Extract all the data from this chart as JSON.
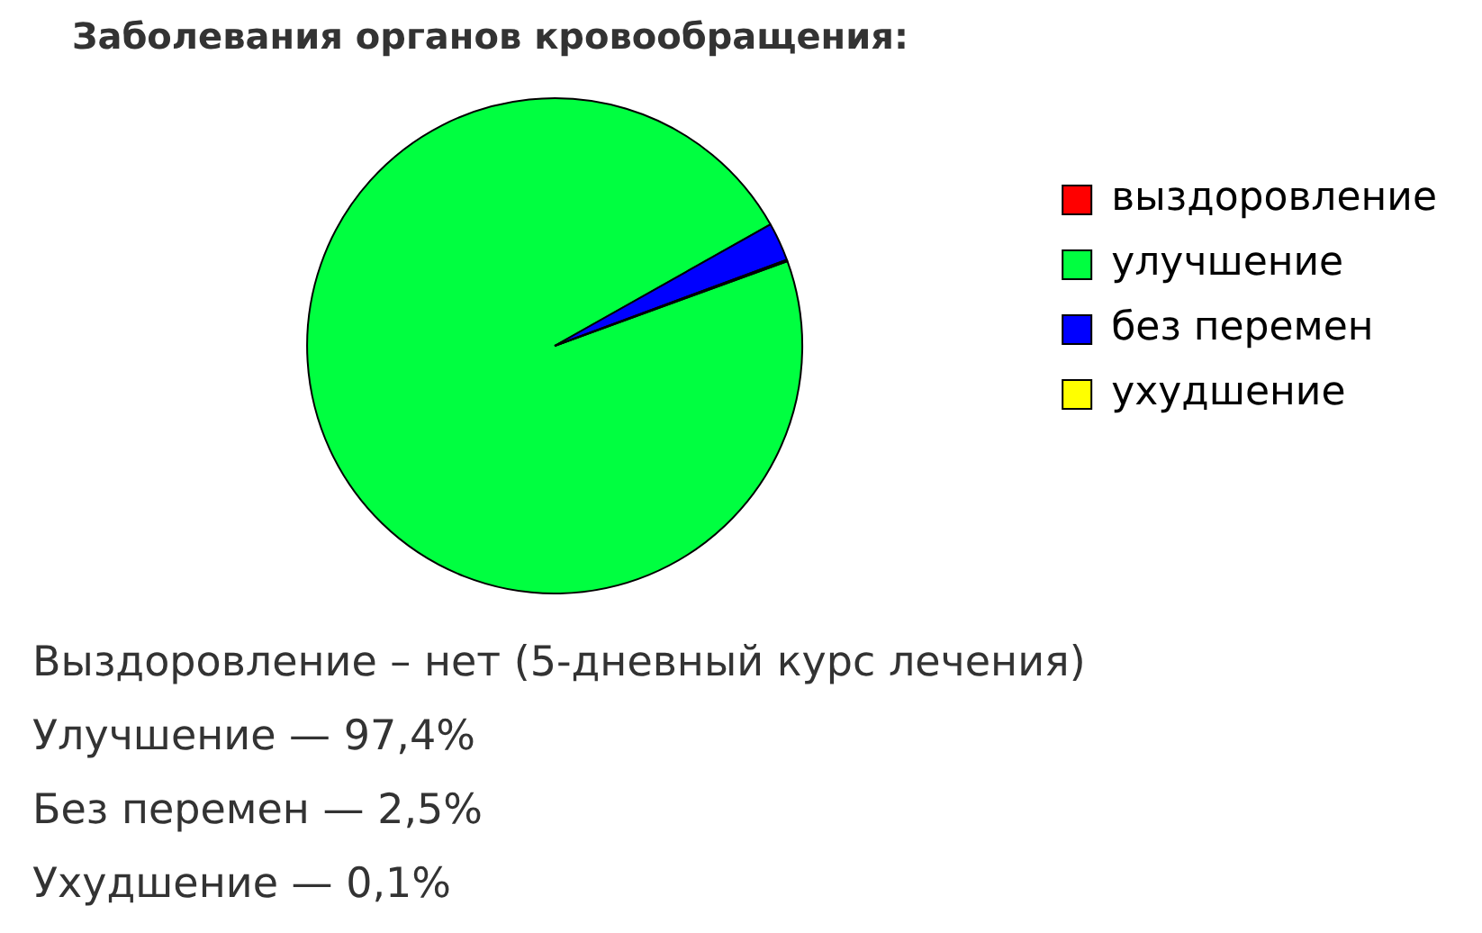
{
  "chart_data": {
    "type": "pie",
    "title": "Заболевания органов кровообращения:",
    "categories": [
      "выздоровление",
      "улучшение",
      "без перемен",
      "ухудшение"
    ],
    "values": [
      0,
      97.4,
      2.5,
      0.1
    ],
    "colors": [
      "#ff0000",
      "#00ff40",
      "#0000ff",
      "#ffff00"
    ],
    "legend": "right",
    "annotations": [
      "Выздоровление – нет (5-дневный курс лечения)",
      "Улучшение — 97,4%",
      "Без перемен — 2,5%",
      "Ухудшение — 0,1%"
    ]
  }
}
